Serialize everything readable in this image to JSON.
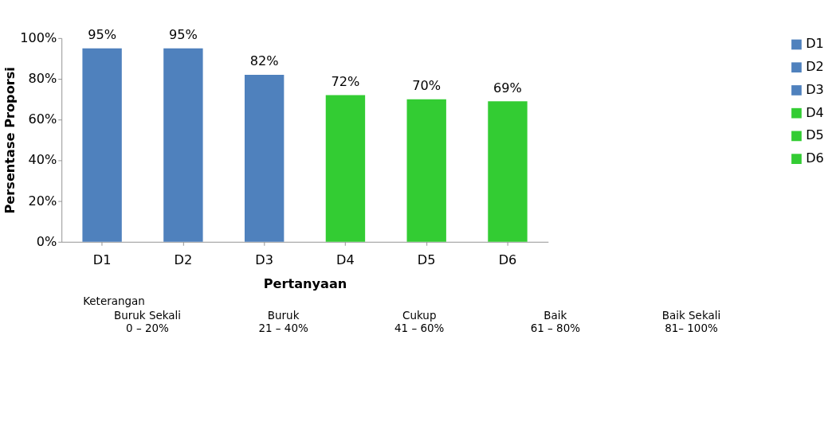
{
  "chart_data": {
    "type": "bar",
    "xlabel": "Pertanyaan",
    "ylabel": "Persentase Proporsi",
    "categories": [
      "D1",
      "D2",
      "D3",
      "D4",
      "D5",
      "D6"
    ],
    "series": [
      {
        "name": "D1",
        "color": "#4f81bd",
        "values": [
          95,
          null,
          null,
          null,
          null,
          null
        ]
      },
      {
        "name": "D2",
        "color": "#4f81bd",
        "values": [
          null,
          95,
          null,
          null,
          null,
          null
        ]
      },
      {
        "name": "D3",
        "color": "#4f81bd",
        "values": [
          null,
          null,
          82,
          null,
          null,
          null
        ]
      },
      {
        "name": "D4",
        "color": "#33cc33",
        "values": [
          null,
          null,
          null,
          72,
          null,
          null
        ]
      },
      {
        "name": "D5",
        "color": "#33cc33",
        "values": [
          null,
          null,
          null,
          null,
          70,
          null
        ]
      },
      {
        "name": "D6",
        "color": "#33cc33",
        "values": [
          null,
          null,
          null,
          null,
          null,
          69
        ]
      }
    ],
    "value_labels": [
      "95%",
      "95%",
      "82%",
      "72%",
      "70%",
      "69%"
    ],
    "ylim": [
      0,
      100
    ],
    "yticks": [
      {
        "value": 0,
        "label": "0%"
      },
      {
        "value": 20,
        "label": "20%"
      },
      {
        "value": 40,
        "label": "40%"
      },
      {
        "value": 60,
        "label": "60%"
      },
      {
        "value": 80,
        "label": "80%"
      },
      {
        "value": 100,
        "label": "100%"
      }
    ],
    "grid": false,
    "legend": "right",
    "annotations": [
      "Keterangan",
      "Buruk Sekali",
      "0 – 20%",
      "Buruk",
      "21 – 40%",
      "Cukup",
      "41 – 60%",
      "Baik",
      "61 – 80%",
      "Baik Sekali",
      "81– 100%"
    ]
  }
}
